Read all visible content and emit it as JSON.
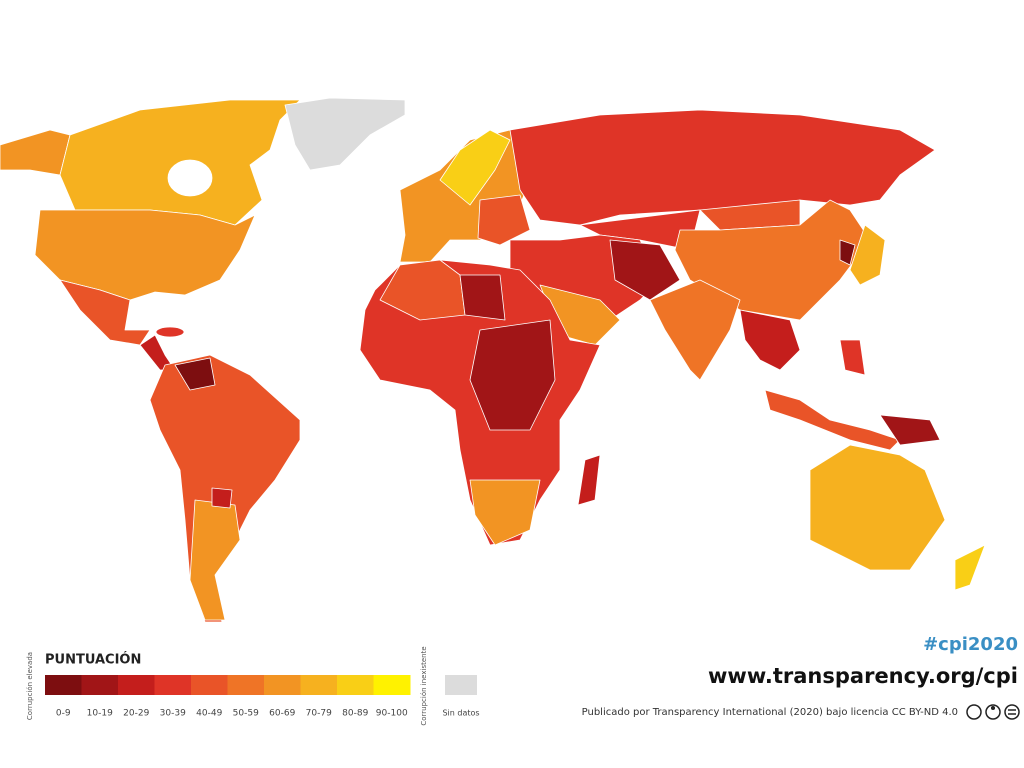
{
  "legend": {
    "title": "PUNTUACIÓN",
    "low_label": "Corrupción elevada",
    "high_label": "Corrupción inexistente",
    "items": [
      {
        "label": "0-9",
        "color": "#7d0e10"
      },
      {
        "label": "10-19",
        "color": "#a11517"
      },
      {
        "label": "20-29",
        "color": "#c41e1c"
      },
      {
        "label": "30-39",
        "color": "#df3427"
      },
      {
        "label": "40-49",
        "color": "#e95428"
      },
      {
        "label": "50-59",
        "color": "#ef7426"
      },
      {
        "label": "60-69",
        "color": "#f29423"
      },
      {
        "label": "70-79",
        "color": "#f6b11f"
      },
      {
        "label": "80-89",
        "color": "#f9cf16"
      },
      {
        "label": "90-100",
        "color": "#fff200"
      }
    ],
    "no_data": {
      "label": "Sin datos",
      "color": "#dcdcdc"
    }
  },
  "footer": {
    "hashtag": "#cpi2020",
    "url": "www.transparency.org/cpi",
    "credit": "Publicado por Transparency International (2020) bajo licencia CC BY-ND 4.0"
  }
}
